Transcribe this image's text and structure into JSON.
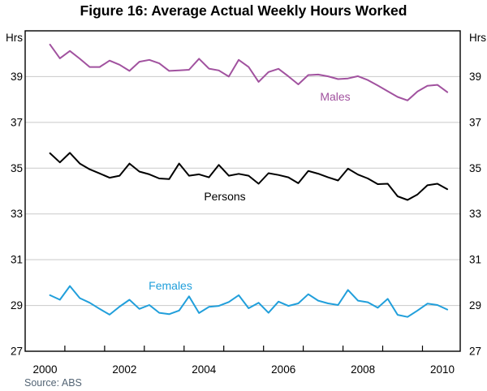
{
  "title": "Figure 16: Average Actual Weekly Hours Worked",
  "source": "Source: ABS",
  "chart_data": {
    "type": "line",
    "unit_label": "Hrs",
    "ylim": [
      27,
      41
    ],
    "yticks": [
      27,
      29,
      31,
      33,
      35,
      37,
      39
    ],
    "xlim": [
      2000,
      2010.95
    ],
    "xtick_marks": [
      2001,
      2002,
      2003,
      2004,
      2005,
      2006,
      2007,
      2008,
      2009,
      2010
    ],
    "xtick_labels": [
      "2000",
      "2002",
      "2004",
      "2006",
      "2008",
      "2010"
    ],
    "x": [
      2000.625,
      2000.875,
      2001.125,
      2001.375,
      2001.625,
      2001.875,
      2002.125,
      2002.375,
      2002.625,
      2002.875,
      2003.125,
      2003.375,
      2003.625,
      2003.875,
      2004.125,
      2004.375,
      2004.625,
      2004.875,
      2005.125,
      2005.375,
      2005.625,
      2005.875,
      2006.125,
      2006.375,
      2006.625,
      2006.875,
      2007.125,
      2007.375,
      2007.625,
      2007.875,
      2008.125,
      2008.375,
      2008.625,
      2008.875,
      2009.125,
      2009.375,
      2009.625,
      2009.875,
      2010.125,
      2010.375,
      2010.625
    ],
    "series": [
      {
        "name": "Males",
        "color": "#a1529f",
        "label_pos": {
          "x": 413,
          "y": 124
        },
        "values": [
          40.4,
          39.8,
          40.12,
          39.78,
          39.42,
          39.42,
          39.7,
          39.52,
          39.25,
          39.65,
          39.73,
          39.58,
          39.25,
          39.27,
          39.3,
          39.78,
          39.35,
          39.27,
          39.0,
          39.73,
          39.42,
          38.77,
          39.2,
          39.34,
          39.01,
          38.66,
          39.07,
          39.09,
          39.01,
          38.89,
          38.92,
          39.02,
          38.85,
          38.61,
          38.36,
          38.11,
          37.96,
          38.35,
          38.6,
          38.64,
          38.32
        ]
      },
      {
        "name": "Persons",
        "color": "#000000",
        "label_pos": {
          "x": 277,
          "y": 247
        },
        "values": [
          35.65,
          35.25,
          35.67,
          35.2,
          34.95,
          34.77,
          34.58,
          34.67,
          35.2,
          34.85,
          34.73,
          34.55,
          34.52,
          35.2,
          34.67,
          34.73,
          34.6,
          35.14,
          34.67,
          34.75,
          34.67,
          34.32,
          34.78,
          34.7,
          34.6,
          34.34,
          34.88,
          34.76,
          34.6,
          34.46,
          34.98,
          34.72,
          34.55,
          34.3,
          34.32,
          33.77,
          33.61,
          33.85,
          34.25,
          34.32,
          34.08
        ]
      },
      {
        "name": "Females",
        "color": "#219fdb",
        "label_pos": {
          "x": 210,
          "y": 357
        },
        "values": [
          29.45,
          29.25,
          29.85,
          29.32,
          29.12,
          28.85,
          28.6,
          28.95,
          29.25,
          28.85,
          29.02,
          28.68,
          28.62,
          28.78,
          29.4,
          28.67,
          28.94,
          28.98,
          29.15,
          29.45,
          28.88,
          29.12,
          28.68,
          29.17,
          28.98,
          29.09,
          29.49,
          29.21,
          29.09,
          29.02,
          29.68,
          29.21,
          29.14,
          28.9,
          29.29,
          28.59,
          28.5,
          28.78,
          29.08,
          29.02,
          28.82
        ]
      }
    ],
    "colors": {
      "grid": "#c9c9c9",
      "frame": "#000000",
      "text": "#000000"
    }
  }
}
